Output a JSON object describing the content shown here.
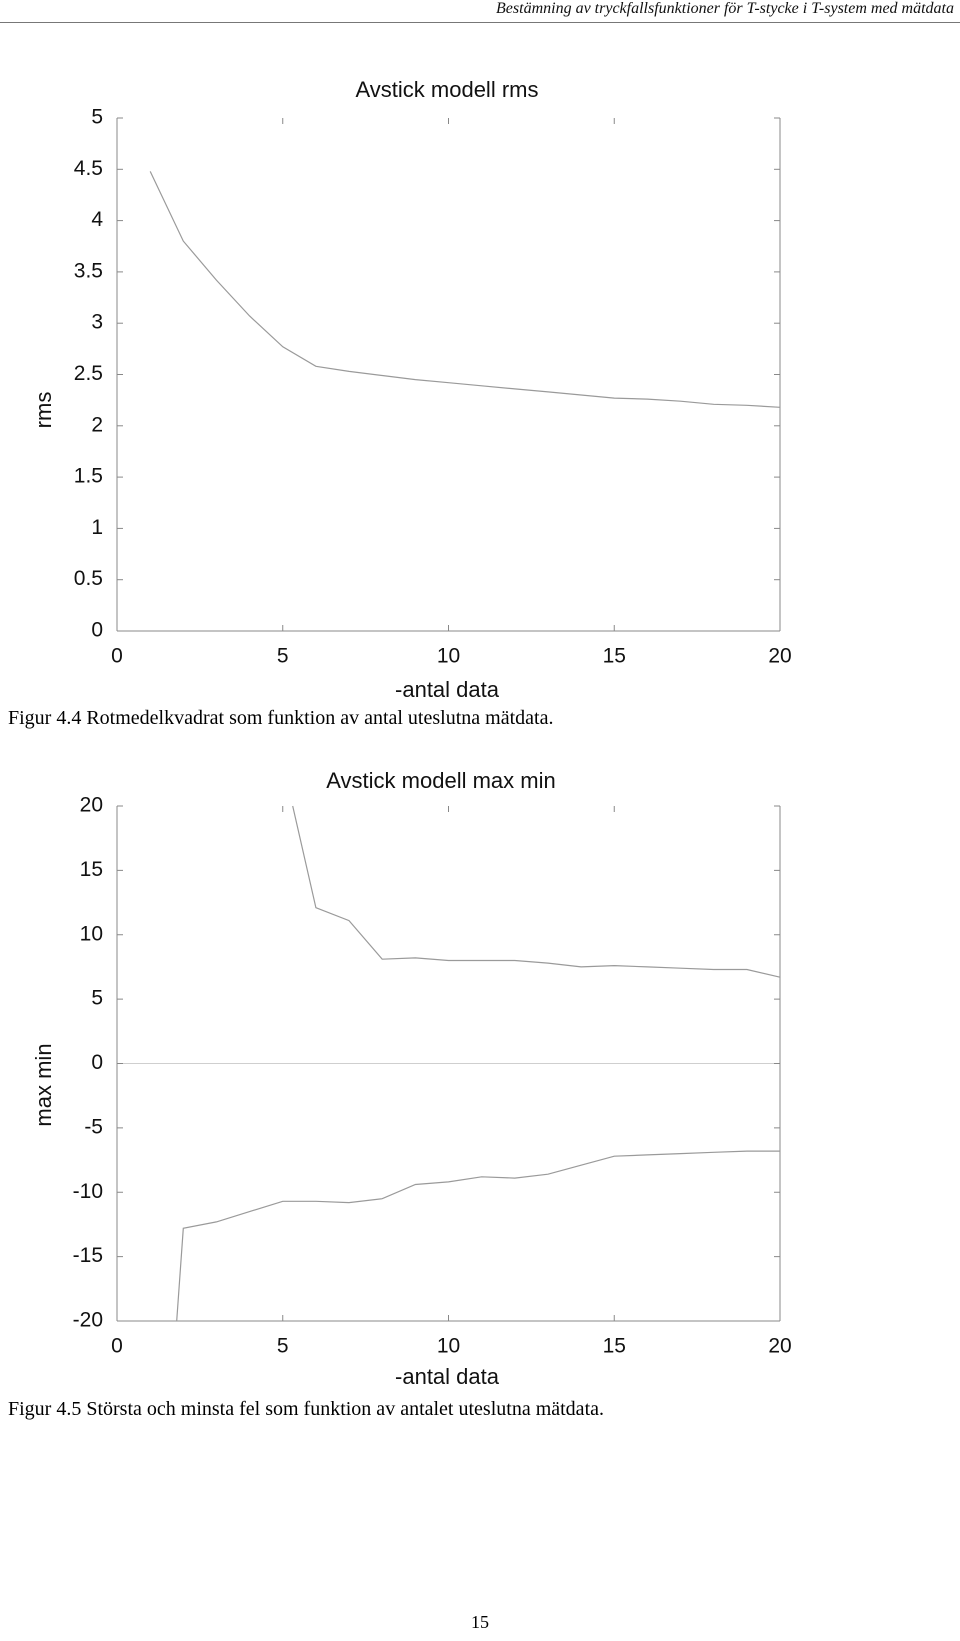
{
  "page": {
    "running_head": "Bestämning av tryckfallsfunktioner för T-stycke i T-system med mätdata",
    "page_number": "15"
  },
  "figures": [
    {
      "caption": "Figur 4.4 Rotmedelkvadrat som funktion av antal uteslutna mätdata.",
      "chart_data": {
        "type": "line",
        "title": "Avstick modell rms",
        "xlabel": "-antal data",
        "ylabel": "rms",
        "xlim": [
          0,
          20
        ],
        "ylim": [
          0,
          5
        ],
        "x_ticks": [
          "0",
          "5",
          "10",
          "15",
          "20"
        ],
        "y_ticks": [
          "0",
          "0.5",
          "1",
          "1.5",
          "2",
          "2.5",
          "3",
          "3.5",
          "4",
          "4.5",
          "5"
        ],
        "grid": false,
        "series": [
          {
            "x": [
              1,
              2,
              3,
              4,
              5,
              6,
              7,
              8,
              9,
              10,
              11,
              12,
              13,
              14,
              15,
              16,
              17,
              18,
              19,
              20
            ],
            "values": [
              4.48,
              3.8,
              3.42,
              3.07,
              2.77,
              2.58,
              2.53,
              2.49,
              2.45,
              2.42,
              2.39,
              2.36,
              2.33,
              2.3,
              2.27,
              2.26,
              2.24,
              2.21,
              2.2,
              2.18
            ]
          }
        ],
        "line_color": "#9a9a9a"
      }
    },
    {
      "caption": "Figur 4.5 Största och minsta fel som funktion av antalet uteslutna mätdata.",
      "chart_data": {
        "type": "line",
        "title": "Avstick modell max min",
        "xlabel": "-antal data",
        "ylabel": "max min",
        "xlim": [
          0,
          20
        ],
        "ylim": [
          -20,
          20
        ],
        "x_ticks": [
          "0",
          "5",
          "10",
          "15",
          "20"
        ],
        "y_ticks": [
          "-20",
          "-15",
          "-10",
          "-5",
          "0",
          "5",
          "10",
          "15",
          "20"
        ],
        "grid": false,
        "zero_line": true,
        "series": [
          {
            "x": [
              5.3,
              6,
              7,
              8,
              9,
              10,
              11,
              12,
              13,
              14,
              15,
              16,
              17,
              18,
              19,
              20
            ],
            "values": [
              20,
              12.1,
              11.1,
              8.1,
              8.2,
              8.0,
              8.0,
              8.0,
              7.8,
              7.5,
              7.6,
              7.5,
              7.4,
              7.3,
              7.3,
              6.7
            ]
          },
          {
            "x": [
              1.8,
              2,
              3,
              4,
              5,
              6,
              7,
              8,
              9,
              10,
              11,
              12,
              13,
              14,
              15,
              16,
              17,
              18,
              19,
              20
            ],
            "values": [
              -20,
              -12.8,
              -12.3,
              -11.5,
              -10.7,
              -10.7,
              -10.8,
              -10.5,
              -9.4,
              -9.2,
              -8.8,
              -8.9,
              -8.6,
              -7.9,
              -7.2,
              -7.1,
              -7.0,
              -6.9,
              -6.8,
              -6.8
            ]
          }
        ],
        "line_color": "#9a9a9a"
      }
    }
  ]
}
